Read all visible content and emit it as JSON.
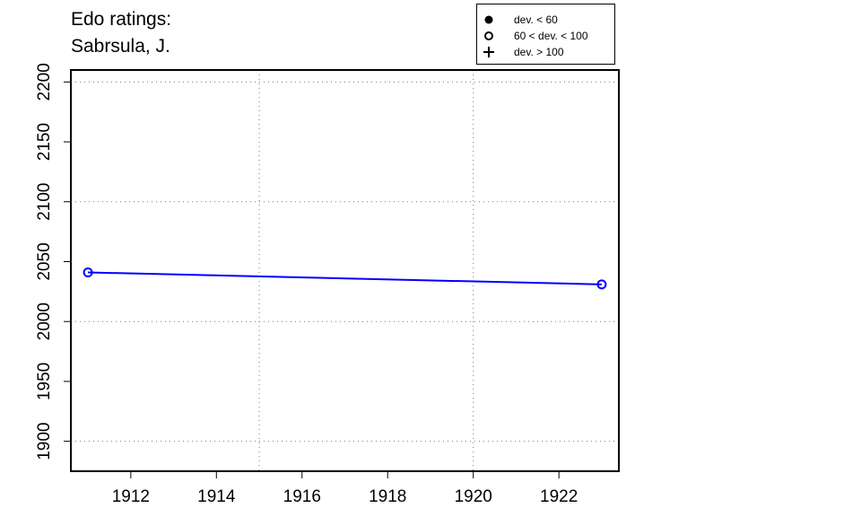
{
  "chart_data": {
    "type": "line",
    "title_lines": [
      "Edo ratings:",
      "Sabrsula, J."
    ],
    "xlabel": "",
    "ylabel": "",
    "xlim": [
      1910.6,
      1923.4
    ],
    "ylim": [
      1875,
      2210
    ],
    "x_ticks": [
      1912,
      1914,
      1916,
      1918,
      1920,
      1922
    ],
    "y_ticks": [
      1900,
      1950,
      2000,
      2050,
      2100,
      2150,
      2200
    ],
    "x_grid": [
      1915,
      1920
    ],
    "y_grid": [
      1900,
      2000,
      2100,
      2200
    ],
    "grid": true,
    "legend_position": "top-right",
    "legend": [
      {
        "symbol": "filled-circle",
        "label": "dev. < 60"
      },
      {
        "symbol": "open-circle",
        "label": "60 < dev. < 100"
      },
      {
        "symbol": "plus",
        "label": "dev. > 100"
      }
    ],
    "series": [
      {
        "color": "#0000ff",
        "marker": "open-circle",
        "points": [
          {
            "x": 1911,
            "y": 2041
          },
          {
            "x": 1923,
            "y": 2031
          }
        ]
      }
    ]
  }
}
